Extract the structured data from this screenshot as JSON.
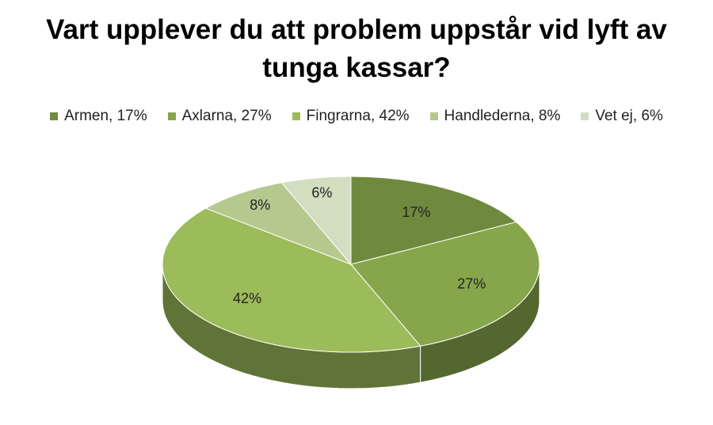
{
  "chart_data": {
    "type": "pie",
    "title": "Vart upplever du att problem uppstår vid lyft av tunga kassar?",
    "categories": [
      "Armen, 17%",
      "Axlarna, 27%",
      "Fingrarna, 42%",
      "Handlederna, 8%",
      "Vet ej, 6%"
    ],
    "values": [
      17,
      27,
      42,
      8,
      6
    ],
    "value_labels": [
      "17%",
      "27%",
      "42%",
      "8%",
      "6%"
    ],
    "colors": [
      "#6f8a3e",
      "#87a64c",
      "#9cbb5a",
      "#b5c98e",
      "#d3ddbf"
    ],
    "legend": "top"
  }
}
